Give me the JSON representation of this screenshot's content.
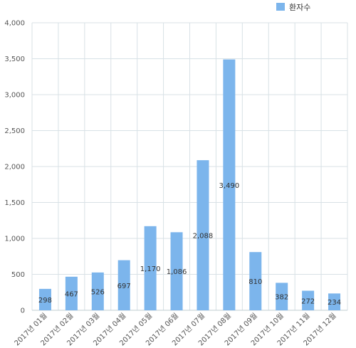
{
  "chart_data": {
    "type": "bar",
    "categories": [
      "2017년 01월",
      "2017년 02월",
      "2017년 03월",
      "2017년 04월",
      "2017년 05월",
      "2017년 06월",
      "2017년 07월",
      "2017년 08월",
      "2017년 09월",
      "2017년 10월",
      "2017년 11월",
      "2017년 12월"
    ],
    "series": [
      {
        "name": "환자수",
        "values": [
          298,
          467,
          526,
          697,
          1170,
          1086,
          2088,
          3490,
          810,
          382,
          272,
          234
        ],
        "labels": [
          "298",
          "467",
          "526",
          "697",
          "1,170",
          "1,086",
          "2,088",
          "3,490",
          "810",
          "382",
          "272",
          "234"
        ]
      }
    ],
    "ylim": [
      0,
      4000
    ],
    "yticks": [
      "0",
      "500",
      "1,000",
      "1,500",
      "2,000",
      "2,500",
      "3,000",
      "3,500",
      "4,000"
    ],
    "grid": true,
    "legend": "top-right",
    "colors": {
      "bar": "#7cb5ec",
      "grid": "#d8e1e6",
      "axis": "#c0ccd2"
    }
  }
}
